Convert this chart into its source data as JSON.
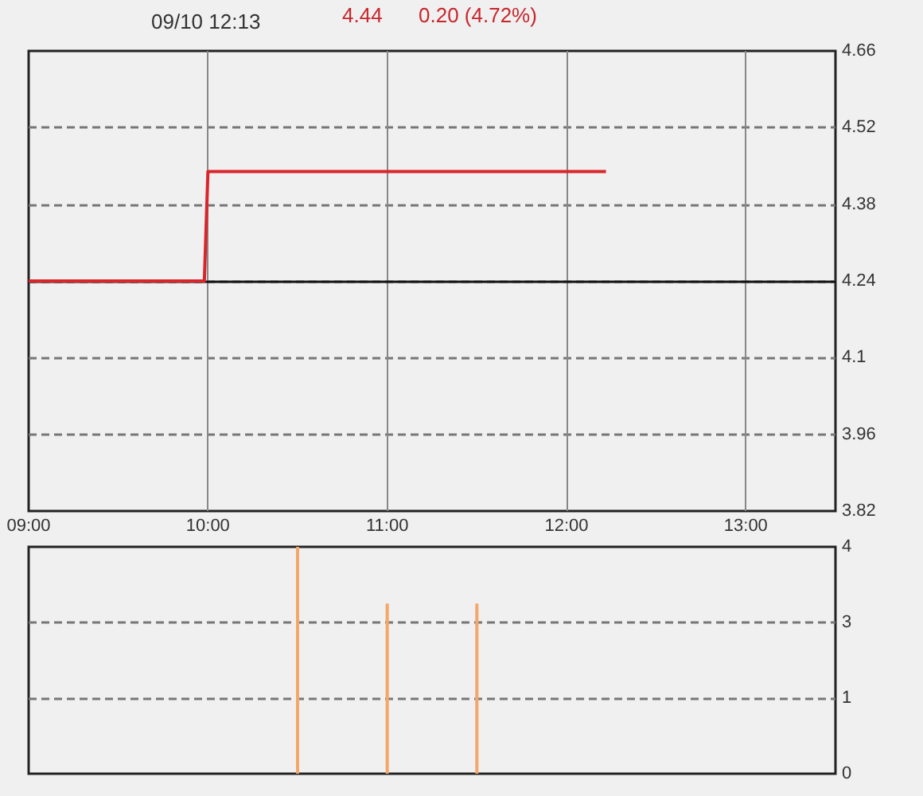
{
  "chart_data": [
    {
      "type": "line",
      "title": "09/10 12:13",
      "annotations": [
        "4.44",
        "0.20 (4.72%)"
      ],
      "x": [
        9,
        9.98,
        10,
        12.22
      ],
      "series": [
        {
          "color": "#d9252b",
          "values": [
            4.24,
            4.24,
            4.44,
            4.44
          ]
        }
      ],
      "xlim": [
        9,
        13.5
      ],
      "xticks": [
        {
          "value": 9,
          "label": "09:00"
        },
        {
          "value": 10,
          "label": "10:00"
        },
        {
          "value": 11,
          "label": "11:00"
        },
        {
          "value": 12,
          "label": "12:00"
        },
        {
          "value": 13,
          "label": "13:00"
        }
      ],
      "ylim": [
        3.82,
        4.66
      ],
      "yticks": [
        3.82,
        3.96,
        4.1,
        4.24,
        4.38,
        4.52,
        4.66
      ],
      "ref_lines": [
        {
          "axis": "y",
          "value": 4.24,
          "color": "#111111",
          "line_style": "solid"
        }
      ],
      "grid": true,
      "marker": "none",
      "line_style": "solid"
    },
    {
      "type": "bar",
      "x": [
        10.5,
        11,
        11.5
      ],
      "series": [
        {
          "color": "#f5a66a",
          "values": [
            4,
            3,
            3
          ]
        }
      ],
      "xlim": [
        9,
        13.5
      ],
      "ylim": [
        0,
        4
      ],
      "yticks": [
        0,
        {
          "value": 1.333,
          "label": "1"
        },
        {
          "value": 2.667,
          "label": "3"
        },
        4
      ],
      "tick_labels": "y",
      "grid": "y"
    }
  ]
}
